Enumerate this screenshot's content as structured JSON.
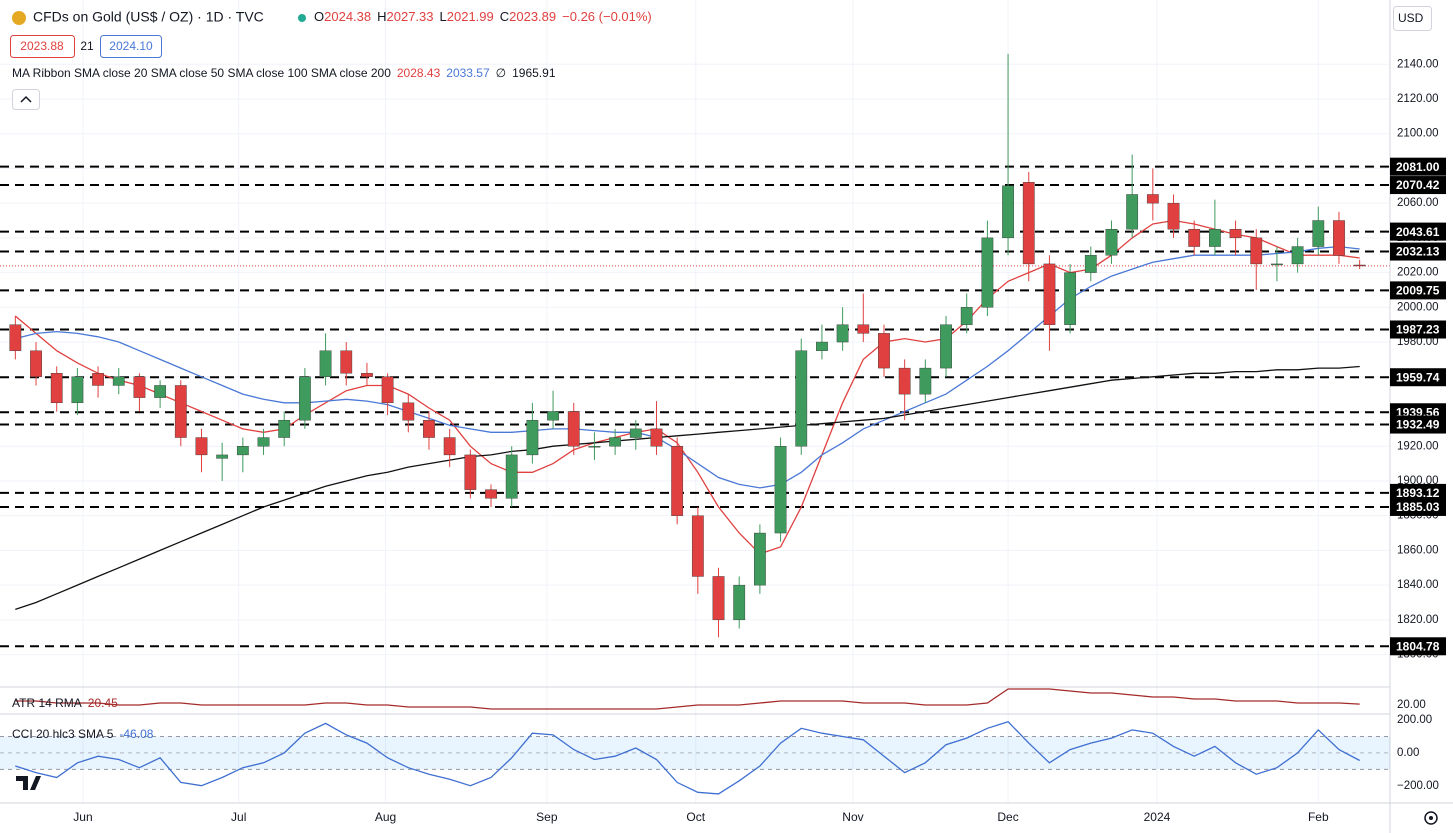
{
  "chart_data": {
    "type": "candlestick",
    "title": "CFDs on Gold (US$ / OZ) · 1D · TVC",
    "ohlc_labels": [
      "O",
      "H",
      "L",
      "C"
    ],
    "change": "−0.26 (−0.01%)",
    "bid": "2023.88",
    "spread": "21",
    "ask": "2024.10",
    "currency": "USD",
    "ma_label": "MA Ribbon SMA close 20 SMA close 50 SMA close 100 SMA close 200",
    "ma_missing": "∅",
    "up_color": "#3f9a5d",
    "down_color": "#e0403f",
    "ylim": [
      1794,
      2177
    ],
    "yticks": [
      {
        "value": 1800,
        "label": "1800.00"
      },
      {
        "value": 1820,
        "label": "1820.00"
      },
      {
        "value": 1840,
        "label": "1840.00"
      },
      {
        "value": 1860,
        "label": "1860.00"
      },
      {
        "value": 1880,
        "label": "1880.00"
      },
      {
        "value": 1900,
        "label": "1900.00"
      },
      {
        "value": 1920,
        "label": "1920.00"
      },
      {
        "value": 1940,
        "label": "1940.00"
      },
      {
        "value": 1960,
        "label": "1960.00"
      },
      {
        "value": 1980,
        "label": "1980.00"
      },
      {
        "value": 2000,
        "label": "2000.00"
      },
      {
        "value": 2020,
        "label": "2020.00"
      },
      {
        "value": 2040,
        "label": "2040.00"
      },
      {
        "value": 2060,
        "label": "2060.00"
      },
      {
        "value": 2080,
        "label": "2080.00"
      },
      {
        "value": 2100,
        "label": "2100.00"
      },
      {
        "value": 2120,
        "label": "2120.00"
      },
      {
        "value": 2140,
        "label": "2140.00"
      }
    ],
    "xticks": [
      {
        "value": 3.27,
        "label": "Jun"
      },
      {
        "value": 10.8,
        "label": "Jul"
      },
      {
        "value": 17.9,
        "label": "Aug"
      },
      {
        "value": 25.7,
        "label": "Sep"
      },
      {
        "value": 32.9,
        "label": "Oct"
      },
      {
        "value": 40.5,
        "label": "Nov"
      },
      {
        "value": 48.0,
        "label": "Dec"
      },
      {
        "value": 55.2,
        "label": "2024"
      },
      {
        "value": 63.0,
        "label": "Feb"
      }
    ],
    "grid": true,
    "levels": [
      {
        "value": 2081.0,
        "label": "2081.00"
      },
      {
        "value": 2070.42,
        "label": "2070.42"
      },
      {
        "value": 2043.61,
        "label": "2043.61"
      },
      {
        "value": 2032.13,
        "label": "2032.13"
      },
      {
        "value": 2009.75,
        "label": "2009.75"
      },
      {
        "value": 1987.23,
        "label": "1987.23"
      },
      {
        "value": 1959.74,
        "label": "1959.74"
      },
      {
        "value": 1939.56,
        "label": "1939.56"
      },
      {
        "value": 1932.49,
        "label": "1932.49"
      },
      {
        "value": 1893.12,
        "label": "1893.12"
      },
      {
        "value": 1885.03,
        "label": "1885.03"
      },
      {
        "value": 1804.78,
        "label": "1804.78"
      }
    ],
    "candles": {
      "open": [
        1990,
        1975,
        1962,
        1945,
        1962,
        1955,
        1960,
        1948,
        1955,
        1925,
        1913,
        1915,
        1920,
        1925,
        1935,
        1960,
        1975,
        1962,
        1960,
        1945,
        1935,
        1925,
        1915,
        1895,
        1890,
        1915,
        1935,
        1940,
        1920,
        1920,
        1925,
        1930,
        1920,
        1880,
        1845,
        1820,
        1840,
        1870,
        1920,
        1975,
        1980,
        1990,
        1985,
        1965,
        1950,
        1965,
        1990,
        2000,
        2040,
        2072,
        2025,
        1990,
        2020,
        2030,
        2045,
        2065,
        2060,
        2045,
        2035,
        2045,
        2040,
        2025,
        2025,
        2035,
        2050,
        2024.38
      ],
      "high": [
        1995,
        1980,
        1966,
        1965,
        1966,
        1965,
        1962,
        1958,
        1958,
        1930,
        1922,
        1925,
        1930,
        1940,
        1965,
        1985,
        1980,
        1968,
        1962,
        1950,
        1940,
        1930,
        1918,
        1898,
        1920,
        1945,
        1952,
        1945,
        1928,
        1930,
        1935,
        1946,
        1925,
        1885,
        1850,
        1845,
        1875,
        1925,
        1982,
        1990,
        2000,
        2008,
        1990,
        1970,
        1970,
        1995,
        2008,
        2050,
        2146,
        2078,
        2030,
        2025,
        2035,
        2050,
        2088,
        2080,
        2065,
        2050,
        2062,
        2050,
        2045,
        2035,
        2040,
        2058,
        2055,
        2027.33
      ],
      "low": [
        1970,
        1955,
        1940,
        1938,
        1948,
        1950,
        1940,
        1942,
        1920,
        1905,
        1900,
        1905,
        1915,
        1920,
        1930,
        1955,
        1955,
        1955,
        1938,
        1928,
        1918,
        1908,
        1890,
        1885,
        1885,
        1910,
        1930,
        1915,
        1912,
        1915,
        1918,
        1915,
        1875,
        1835,
        1810,
        1815,
        1835,
        1865,
        1915,
        1970,
        1975,
        1980,
        1960,
        1935,
        1945,
        1960,
        1985,
        1995,
        2030,
        2015,
        1975,
        1985,
        2015,
        2025,
        2040,
        2050,
        2040,
        2030,
        2030,
        2030,
        2010,
        2015,
        2020,
        2030,
        2025,
        2021.99
      ],
      "close": [
        1975,
        1960,
        1945,
        1960,
        1955,
        1960,
        1948,
        1955,
        1925,
        1915,
        1915,
        1920,
        1925,
        1935,
        1960,
        1975,
        1962,
        1960,
        1945,
        1935,
        1925,
        1915,
        1895,
        1890,
        1915,
        1935,
        1940,
        1920,
        1920,
        1925,
        1930,
        1920,
        1880,
        1845,
        1820,
        1840,
        1870,
        1920,
        1975,
        1980,
        1990,
        1985,
        1965,
        1950,
        1965,
        1990,
        2000,
        2040,
        2070,
        2025,
        1990,
        2020,
        2030,
        2045,
        2065,
        2060,
        2045,
        2035,
        2045,
        2040,
        2025,
        2025,
        2035,
        2050,
        2030,
        2023.89
      ]
    },
    "series": [
      {
        "color": "#e0403f",
        "values": [
          1995,
          1985,
          1975,
          1968,
          1962,
          1958,
          1955,
          1950,
          1945,
          1940,
          1935,
          1930,
          1928,
          1930,
          1938,
          1945,
          1952,
          1955,
          1955,
          1950,
          1942,
          1935,
          1920,
          1910,
          1905,
          1905,
          1910,
          1918,
          1922,
          1925,
          1928,
          1930,
          1922,
          1905,
          1885,
          1870,
          1858,
          1862,
          1885,
          1915,
          1945,
          1970,
          1980,
          1982,
          1980,
          1982,
          1992,
          2005,
          2015,
          2020,
          2025,
          2020,
          2022,
          2030,
          2040,
          2048,
          2050,
          2048,
          2045,
          2042,
          2040,
          2035,
          2030,
          2030,
          2030,
          2028.43
        ]
      },
      {
        "color": "#4a78d6",
        "values": [
          1982,
          1985,
          1986,
          1985,
          1983,
          1980,
          1975,
          1970,
          1965,
          1960,
          1955,
          1950,
          1947,
          1945,
          1945,
          1946,
          1947,
          1946,
          1944,
          1940,
          1936,
          1932,
          1930,
          1928,
          1928,
          1929,
          1930,
          1930,
          1929,
          1928,
          1928,
          1925,
          1918,
          1910,
          1902,
          1898,
          1896,
          1898,
          1905,
          1915,
          1922,
          1930,
          1935,
          1940,
          1945,
          1950,
          1958,
          1966,
          1975,
          1985,
          1995,
          2005,
          2012,
          2018,
          2022,
          2026,
          2028,
          2030,
          2030,
          2030,
          2030,
          2031,
          2032,
          2034,
          2035,
          2033.57
        ]
      },
      {
        "color": "#111111",
        "values": [
          1826,
          1830,
          1835,
          1840,
          1845,
          1850,
          1855,
          1860,
          1865,
          1870,
          1875,
          1880,
          1885,
          1889,
          1893,
          1897,
          1900,
          1903,
          1905,
          1908,
          1910,
          1912,
          1914,
          1915,
          1917,
          1918,
          1920,
          1921,
          1922,
          1923,
          1924,
          1925,
          1926,
          1927,
          1928,
          1929,
          1930,
          1931,
          1932,
          1933,
          1934,
          1935,
          1936,
          1938,
          1940,
          1942,
          1944,
          1946,
          1948,
          1950,
          1952,
          1954,
          1956,
          1958,
          1959,
          1960,
          1961,
          1962,
          1962,
          1963,
          1963,
          1964,
          1964,
          1965,
          1965,
          1965.91
        ]
      }
    ],
    "atr": {
      "label": "ATR 14 RMA",
      "color": "#a52a2a",
      "ylim": [
        16.5,
        28.5
      ],
      "yticks": [
        {
          "value": 20,
          "label": "20.00"
        }
      ],
      "values": [
        22,
        22,
        21,
        21,
        21,
        20,
        20,
        21,
        21,
        20,
        20,
        20,
        20,
        20,
        20,
        21,
        21,
        20,
        20,
        19,
        19,
        19,
        19,
        18,
        18,
        18,
        18,
        18,
        18,
        18,
        18,
        18,
        19,
        20,
        20,
        20,
        21,
        22,
        22,
        22,
        22,
        21,
        21,
        21,
        20,
        20,
        20,
        21,
        28,
        28,
        28,
        27,
        26,
        26,
        25,
        24,
        24,
        23,
        23,
        22,
        22,
        22,
        21,
        21,
        21,
        20.45
      ]
    },
    "cci": {
      "label": "CCI 20 hlc3 SMA 5",
      "color": "#3f6fd1",
      "ylim": [
        -287,
        225
      ],
      "band": [
        -100,
        100
      ],
      "yticks": [
        {
          "value": 200,
          "label": "200.00"
        },
        {
          "value": 0,
          "label": "0.00"
        },
        {
          "value": -200,
          "label": "−200.00"
        }
      ],
      "values": [
        -80,
        -120,
        -150,
        -60,
        -20,
        -40,
        -90,
        -30,
        -180,
        -200,
        -150,
        -90,
        -60,
        0,
        120,
        180,
        110,
        60,
        -30,
        -90,
        -130,
        -160,
        -200,
        -150,
        -30,
        120,
        110,
        20,
        -40,
        -20,
        30,
        -40,
        -180,
        -240,
        -250,
        -170,
        -80,
        60,
        150,
        120,
        100,
        80,
        -20,
        -120,
        -60,
        50,
        90,
        150,
        190,
        60,
        -60,
        20,
        60,
        90,
        140,
        120,
        40,
        -20,
        40,
        -60,
        -130,
        -90,
        0,
        140,
        20,
        -46.08
      ]
    }
  }
}
